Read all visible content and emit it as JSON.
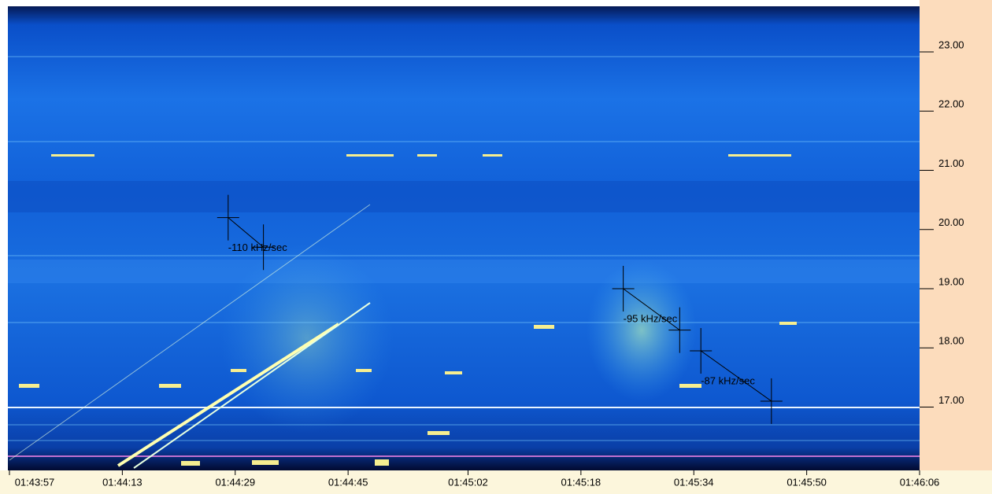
{
  "chart_data": {
    "type": "spectrogram",
    "xlim": [
      "01:43:57",
      "01:46:06"
    ],
    "xticks": [
      "01:43:57",
      "01:44:13",
      "01:44:29",
      "01:44:45",
      "01:45:02",
      "01:45:18",
      "01:45:34",
      "01:45:50",
      "01:46:06"
    ],
    "ylim": [
      15.93,
      23.77
    ],
    "yticks": [
      {
        "value": 17,
        "label": "17.00"
      },
      {
        "value": 18,
        "label": "18.00"
      },
      {
        "value": 19,
        "label": "19.00"
      },
      {
        "value": 20,
        "label": "20.00"
      },
      {
        "value": 21,
        "label": "21.00"
      },
      {
        "value": 22,
        "label": "22.00"
      },
      {
        "value": 23,
        "label": "23.00"
      }
    ],
    "annotations": [
      {
        "label": "-110 kHz/sec",
        "start": [
          "01:44:28",
          20.2
        ],
        "end": [
          "01:44:33",
          19.7
        ]
      },
      {
        "label": "-95 kHz/sec",
        "start": [
          "01:45:24",
          19.0
        ],
        "end": [
          "01:45:32",
          18.3
        ]
      },
      {
        "label": "-87 kHz/sec",
        "start": [
          "01:45:35",
          17.95
        ],
        "end": [
          "01:45:45",
          17.1
        ]
      }
    ]
  }
}
